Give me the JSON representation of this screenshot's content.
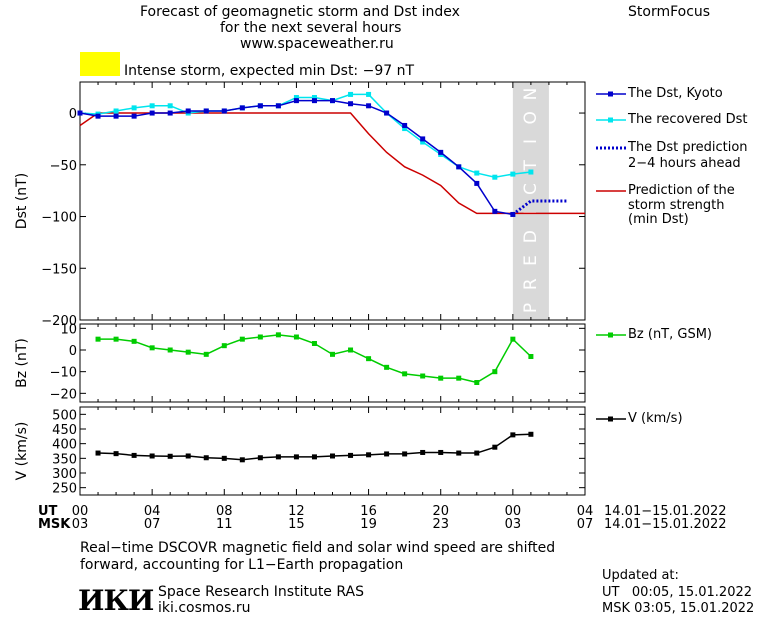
{
  "header": {
    "title_lines": [
      "Forecast of geomagnetic storm and Dst index",
      "for the next several hours",
      "www.spaceweather.ru"
    ],
    "brand": "StormFocus",
    "storm_text": "Intense storm, expected min Dst: −97 nT",
    "storm_color": "#ffff00"
  },
  "prediction_label": "PREDICTION",
  "time_axis": {
    "ut_label": "UT",
    "msk_label": "MSK",
    "ut_ticks": [
      "00",
      "04",
      "08",
      "12",
      "16",
      "20",
      "00",
      "04"
    ],
    "msk_ticks": [
      "03",
      "07",
      "11",
      "15",
      "19",
      "23",
      "03",
      "07"
    ],
    "ut_range": "14.01−15.01.2022",
    "msk_range": "14.01−15.01.2022"
  },
  "legend": {
    "dst_kyoto": "The Dst, Kyoto",
    "dst_recovered": "The recovered Dst",
    "dst_prediction": [
      "The Dst prediction",
      "2−4 hours ahead"
    ],
    "storm_strength": [
      "Prediction of the",
      "storm strength",
      "(min Dst)"
    ],
    "bz": "Bz (nT, GSM)",
    "v": "V (km/s)"
  },
  "colors": {
    "kyoto": "#0000cc",
    "recovered": "#00e5ee",
    "prediction": "#0000cc",
    "strength": "#cc0000",
    "bz": "#00cc00",
    "v": "#000000",
    "prediction_band": "#d9d9d9"
  },
  "chart_data": [
    {
      "type": "line",
      "ylabel": "Dst (nT)",
      "xlim": [
        0,
        28
      ],
      "ylim": [
        -200,
        30
      ],
      "yticks": [
        0,
        -50,
        -100,
        -150,
        -200
      ],
      "prediction_band": [
        24,
        26
      ],
      "series": [
        {
          "name": "The Dst, Kyoto",
          "x": [
            0,
            1,
            2,
            3,
            4,
            5,
            6,
            7,
            8,
            9,
            10,
            11,
            12,
            13,
            14,
            15,
            16,
            17,
            18,
            19,
            20,
            21,
            22,
            23,
            24
          ],
          "y": [
            0,
            -3,
            -3,
            -3,
            0,
            0,
            2,
            2,
            2,
            5,
            7,
            7,
            12,
            12,
            12,
            9,
            7,
            0,
            -12,
            -25,
            -38,
            -52,
            -68,
            -95,
            -98
          ]
        },
        {
          "name": "The recovered Dst",
          "x": [
            0,
            1,
            2,
            3,
            4,
            5,
            6,
            7,
            8,
            9,
            10,
            11,
            12,
            13,
            14,
            15,
            16,
            17,
            18,
            19,
            20,
            21,
            22,
            23,
            24,
            25
          ],
          "y": [
            0,
            -1,
            2,
            5,
            7,
            7,
            0,
            2,
            2,
            5,
            7,
            7,
            15,
            15,
            12,
            18,
            18,
            0,
            -15,
            -28,
            -40,
            -52,
            -58,
            -62,
            -59,
            -57
          ]
        },
        {
          "name": "The Dst prediction 2−4 hours ahead",
          "x": [
            24,
            25,
            26,
            27
          ],
          "y": [
            -98,
            -85,
            -85,
            -85
          ]
        },
        {
          "name": "Prediction of the storm strength (min Dst)",
          "x": [
            0,
            1,
            2,
            3,
            4,
            5,
            6,
            7,
            8,
            9,
            10,
            11,
            12,
            13,
            14,
            15,
            16,
            17,
            18,
            19,
            20,
            21,
            22,
            23,
            24,
            25,
            26,
            27,
            28
          ],
          "y": [
            -12,
            0,
            0,
            0,
            0,
            0,
            0,
            0,
            0,
            0,
            0,
            0,
            0,
            0,
            0,
            0,
            -20,
            -38,
            -52,
            -60,
            -70,
            -87,
            -97,
            -97,
            -97,
            -97,
            -97,
            -97,
            -97
          ]
        }
      ]
    },
    {
      "type": "line",
      "ylabel": "Bz (nT)",
      "xlim": [
        0,
        28
      ],
      "ylim": [
        -24,
        12
      ],
      "yticks": [
        10,
        0,
        -10,
        -20
      ],
      "series": [
        {
          "name": "Bz (nT, GSM)",
          "x": [
            1,
            2,
            3,
            4,
            5,
            6,
            7,
            8,
            9,
            10,
            11,
            12,
            13,
            14,
            15,
            16,
            17,
            18,
            19,
            20,
            21,
            22,
            23,
            24,
            25
          ],
          "y": [
            5,
            5,
            4,
            1,
            0,
            -1,
            -2,
            2,
            5,
            6,
            7,
            6,
            3,
            -2,
            0,
            -4,
            -8,
            -11,
            -12,
            -13,
            -13,
            -15,
            -10,
            5,
            -3
          ]
        }
      ]
    },
    {
      "type": "line",
      "ylabel": "V (km/s)",
      "xlim": [
        0,
        28
      ],
      "ylim": [
        225,
        525
      ],
      "yticks": [
        500,
        450,
        400,
        350,
        300,
        250
      ],
      "series": [
        {
          "name": "V (km/s)",
          "x": [
            1,
            2,
            3,
            4,
            5,
            6,
            7,
            8,
            9,
            10,
            11,
            12,
            13,
            14,
            15,
            16,
            17,
            18,
            19,
            20,
            21,
            22,
            23,
            24,
            25
          ],
          "y": [
            368,
            366,
            360,
            358,
            357,
            358,
            352,
            350,
            345,
            352,
            355,
            355,
            355,
            358,
            360,
            362,
            365,
            365,
            370,
            370,
            368,
            368,
            388,
            430,
            432
          ]
        }
      ]
    }
  ],
  "footer": {
    "note_lines": [
      "Real−time DSCOVR magnetic field and solar wind speed are shifted",
      "forward, accounting for L1−Earth propagation"
    ],
    "logo": "ИКИ",
    "institute": "Space Research Institute RAS",
    "site": "iki.cosmos.ru",
    "updated_label": "Updated at:",
    "updated_ut": "UT   00:05, 15.01.2022",
    "updated_msk": "MSK 03:05, 15.01.2022"
  }
}
